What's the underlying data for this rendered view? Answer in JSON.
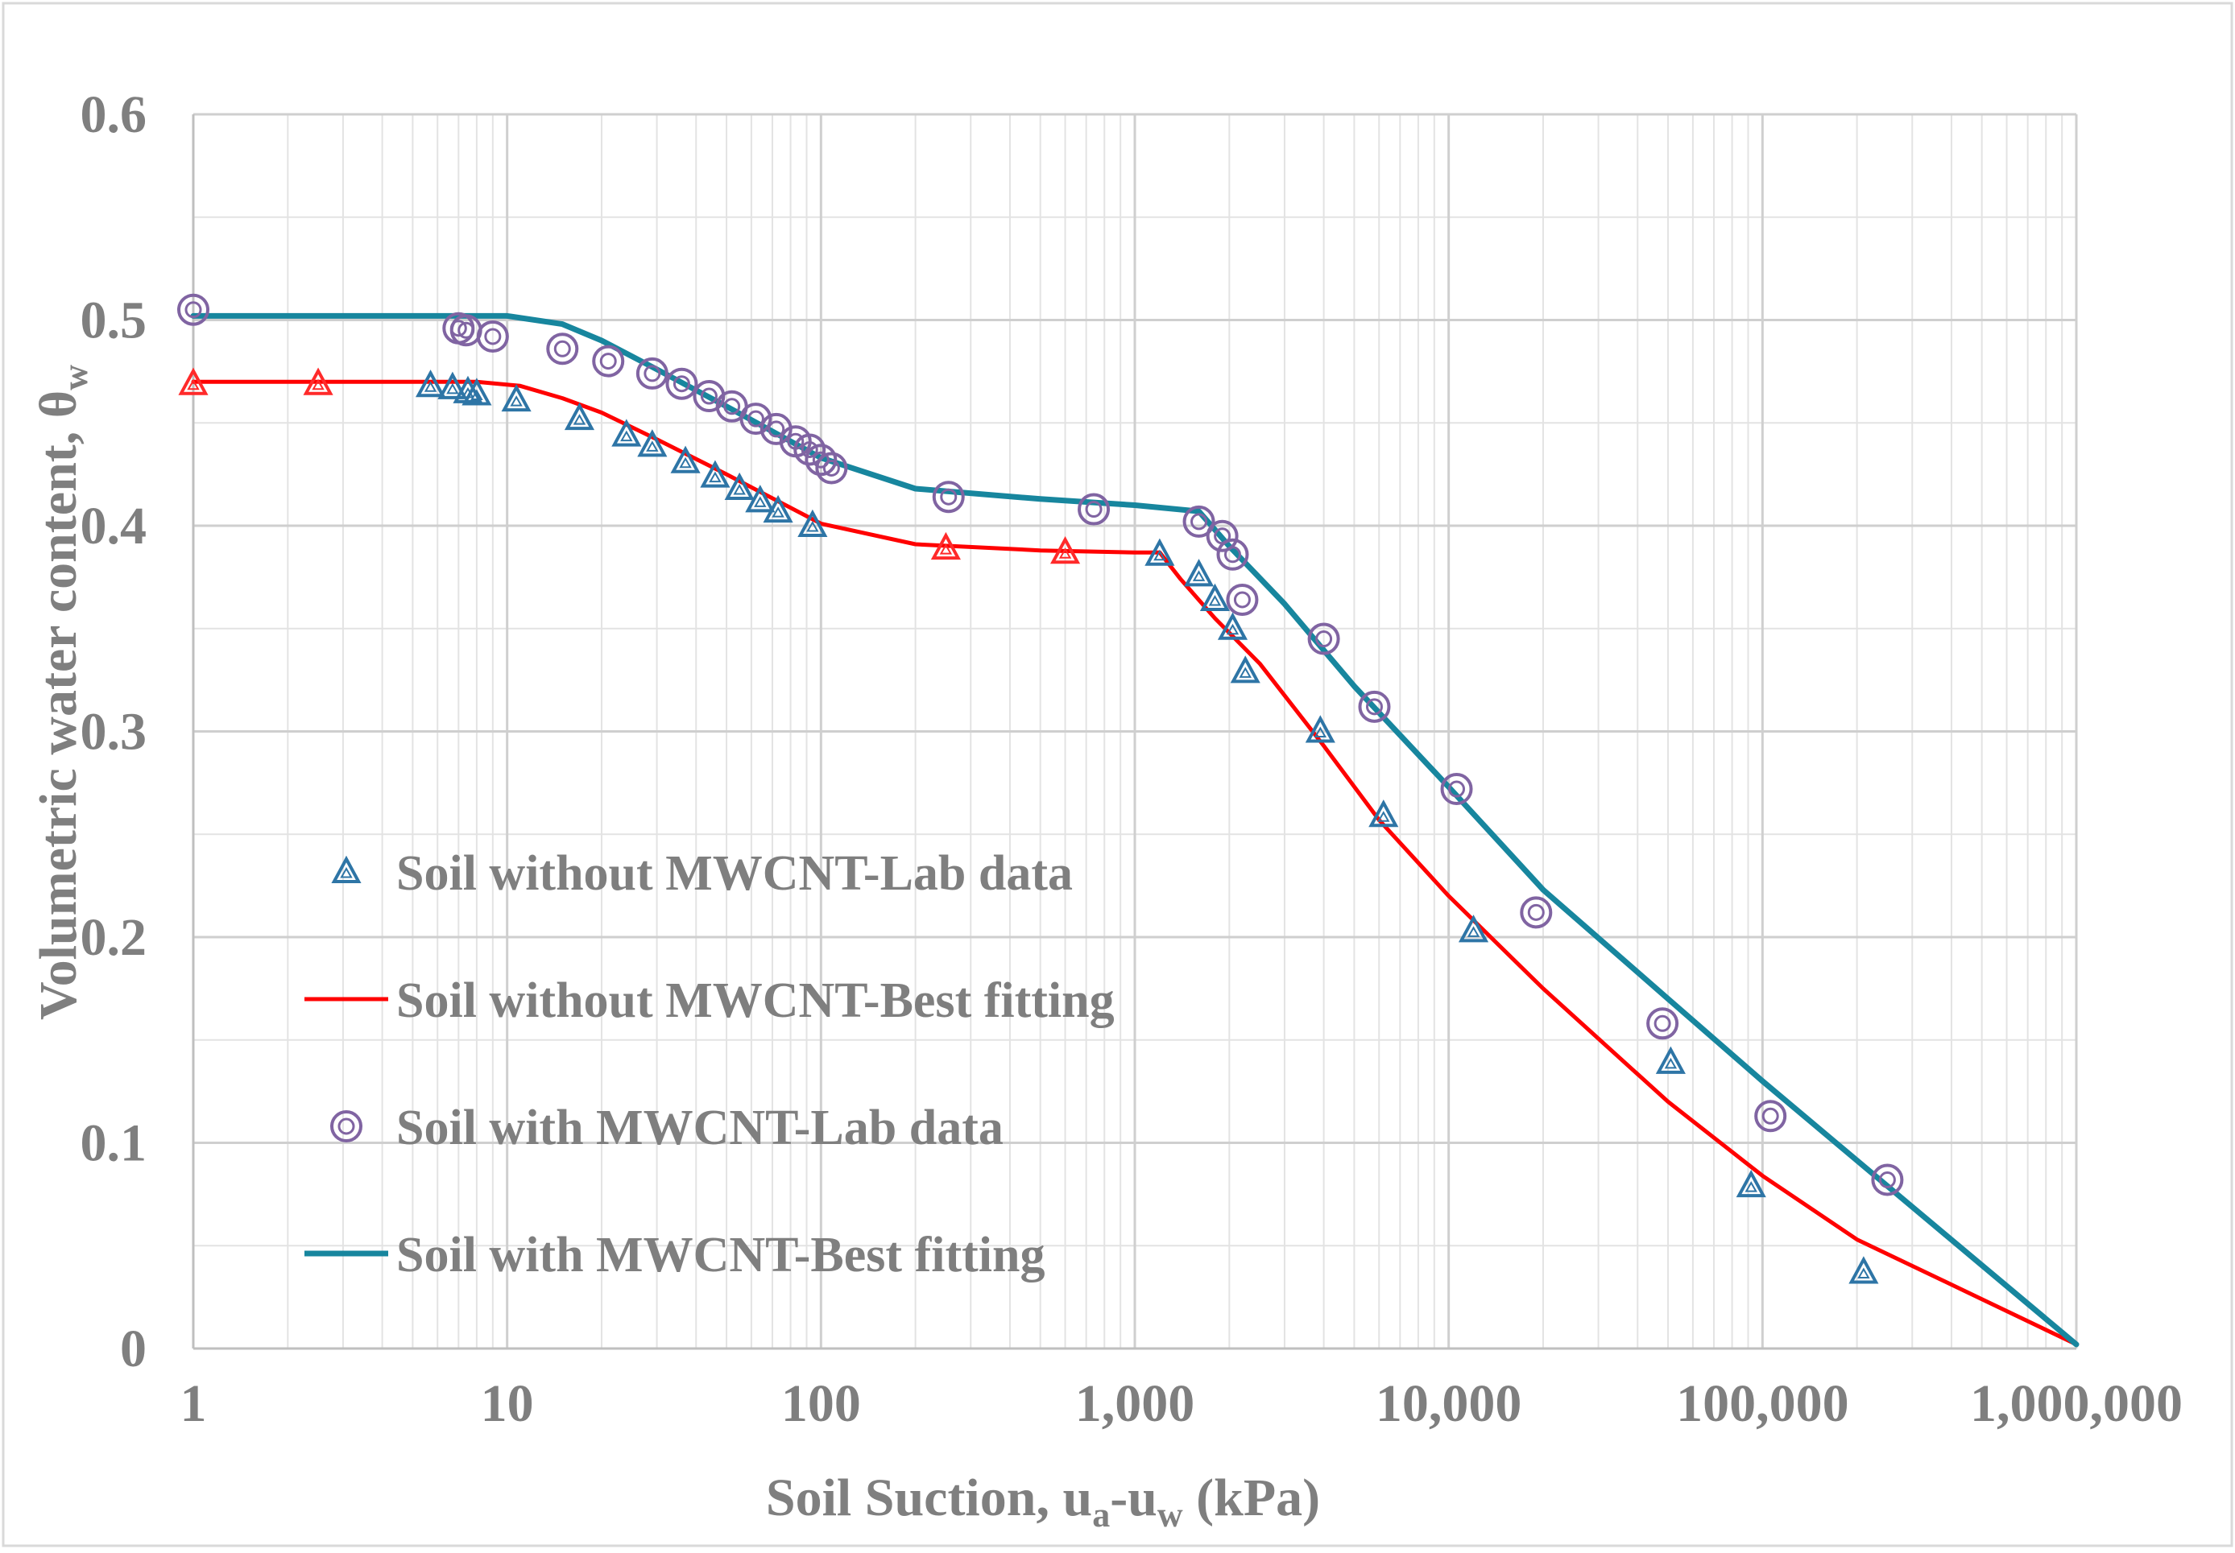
{
  "chart_data": {
    "type": "scatter",
    "title": "",
    "xlabel": {
      "main": "Soil Suction, u",
      "sub1": "a",
      "mid": "-u",
      "sub2": "w",
      "end": " (kPa)"
    },
    "ylabel": {
      "main": "Volumetric water content, θ",
      "sub": "w"
    },
    "xscale": "log",
    "xlim": [
      1,
      1000000
    ],
    "ylim": [
      0,
      0.6
    ],
    "grid": true,
    "legend_position": "center-left",
    "x_ticks": [
      {
        "value": 1,
        "label": "1"
      },
      {
        "value": 10,
        "label": "10"
      },
      {
        "value": 100,
        "label": "100"
      },
      {
        "value": 1000,
        "label": "1,000"
      },
      {
        "value": 10000,
        "label": "10,000"
      },
      {
        "value": 100000,
        "label": "100,000"
      },
      {
        "value": 1000000,
        "label": "1,000,000"
      }
    ],
    "y_ticks": [
      {
        "value": 0,
        "label": "0"
      },
      {
        "value": 0.1,
        "label": "0.1"
      },
      {
        "value": 0.2,
        "label": "0.2"
      },
      {
        "value": 0.3,
        "label": "0.3"
      },
      {
        "value": 0.4,
        "label": "0.4"
      },
      {
        "value": 0.5,
        "label": "0.5"
      },
      {
        "value": 0.6,
        "label": "0.6"
      }
    ],
    "series": [
      {
        "name": "Soil without MWCNT-Lab data",
        "kind": "marker-triangle",
        "color": "#2e75a6",
        "points": [
          [
            5.7,
            0.468
          ],
          [
            6.7,
            0.467
          ],
          [
            7.5,
            0.465
          ],
          [
            8,
            0.464
          ],
          [
            10.7,
            0.461
          ],
          [
            17,
            0.452
          ],
          [
            24,
            0.444
          ],
          [
            29,
            0.439
          ],
          [
            37,
            0.431
          ],
          [
            46,
            0.424
          ],
          [
            55,
            0.418
          ],
          [
            64,
            0.412
          ],
          [
            73,
            0.407
          ],
          [
            94,
            0.4
          ],
          [
            1200,
            0.386
          ],
          [
            1600,
            0.376
          ],
          [
            1800,
            0.364
          ],
          [
            2050,
            0.35
          ],
          [
            2250,
            0.329
          ],
          [
            3900,
            0.3
          ],
          [
            6200,
            0.259
          ],
          [
            12000,
            0.203
          ],
          [
            51000,
            0.139
          ],
          [
            92000,
            0.079
          ],
          [
            210000,
            0.037
          ]
        ]
      },
      {
        "name": "Soil without MWCNT-Lab data (red)",
        "kind": "marker-triangle-red",
        "color": "#ff2a2a",
        "points": [
          [
            1,
            0.469
          ],
          [
            2.5,
            0.469
          ],
          [
            250,
            0.389
          ],
          [
            600,
            0.387
          ]
        ]
      },
      {
        "name": "Soil without MWCNT-Best fitting",
        "kind": "line",
        "color": "#ff0000",
        "points": [
          [
            1,
            0.47
          ],
          [
            8,
            0.47
          ],
          [
            11,
            0.468
          ],
          [
            15,
            0.462
          ],
          [
            20,
            0.455
          ],
          [
            30,
            0.442
          ],
          [
            50,
            0.425
          ],
          [
            100,
            0.401
          ],
          [
            200,
            0.391
          ],
          [
            500,
            0.388
          ],
          [
            1000,
            0.387
          ],
          [
            1200,
            0.387
          ],
          [
            1400,
            0.374
          ],
          [
            1800,
            0.355
          ],
          [
            2500,
            0.333
          ],
          [
            4000,
            0.293
          ],
          [
            6000,
            0.257
          ],
          [
            10000,
            0.22
          ],
          [
            20000,
            0.175
          ],
          [
            50000,
            0.12
          ],
          [
            100000,
            0.084
          ],
          [
            200000,
            0.053
          ],
          [
            500000,
            0.024
          ],
          [
            1000000,
            0.002
          ]
        ]
      },
      {
        "name": "Soil with MWCNT-Lab data",
        "kind": "marker-circle",
        "color": "#8064a2",
        "points": [
          [
            1,
            0.505
          ],
          [
            7,
            0.496
          ],
          [
            7.4,
            0.495
          ],
          [
            9,
            0.492
          ],
          [
            15,
            0.486
          ],
          [
            21,
            0.48
          ],
          [
            29,
            0.474
          ],
          [
            36,
            0.469
          ],
          [
            44,
            0.463
          ],
          [
            52,
            0.458
          ],
          [
            62,
            0.452
          ],
          [
            72,
            0.447
          ],
          [
            83,
            0.441
          ],
          [
            92,
            0.437
          ],
          [
            100,
            0.432
          ],
          [
            108,
            0.428
          ],
          [
            255,
            0.414
          ],
          [
            740,
            0.408
          ],
          [
            1600,
            0.402
          ],
          [
            1900,
            0.395
          ],
          [
            2050,
            0.386
          ],
          [
            2200,
            0.364
          ],
          [
            4000,
            0.345
          ],
          [
            5800,
            0.312
          ],
          [
            10600,
            0.272
          ],
          [
            19000,
            0.212
          ],
          [
            48000,
            0.158
          ],
          [
            106000,
            0.113
          ],
          [
            250000,
            0.082
          ]
        ]
      },
      {
        "name": "Soil with MWCNT-Best fitting",
        "kind": "line",
        "color": "#17869e",
        "points": [
          [
            1,
            0.502
          ],
          [
            10,
            0.502
          ],
          [
            15,
            0.498
          ],
          [
            20,
            0.49
          ],
          [
            30,
            0.476
          ],
          [
            50,
            0.458
          ],
          [
            100,
            0.433
          ],
          [
            200,
            0.418
          ],
          [
            500,
            0.413
          ],
          [
            1000,
            0.41
          ],
          [
            1600,
            0.407
          ],
          [
            2000,
            0.39
          ],
          [
            3000,
            0.362
          ],
          [
            5000,
            0.322
          ],
          [
            10000,
            0.273
          ],
          [
            20000,
            0.223
          ],
          [
            50000,
            0.17
          ],
          [
            100000,
            0.13
          ],
          [
            250000,
            0.079
          ],
          [
            1000000,
            0.002
          ]
        ]
      }
    ],
    "legend": [
      {
        "label": "Soil without MWCNT-Lab data",
        "kind": "marker-triangle",
        "color": "#2e75a6"
      },
      {
        "label": "Soil without MWCNT-Best fitting",
        "kind": "line",
        "color": "#ff0000"
      },
      {
        "label": "Soil with MWCNT-Lab data",
        "kind": "marker-circle",
        "color": "#8064a2"
      },
      {
        "label": "Soil with MWCNT-Best fitting",
        "kind": "line",
        "color": "#17869e"
      }
    ]
  }
}
